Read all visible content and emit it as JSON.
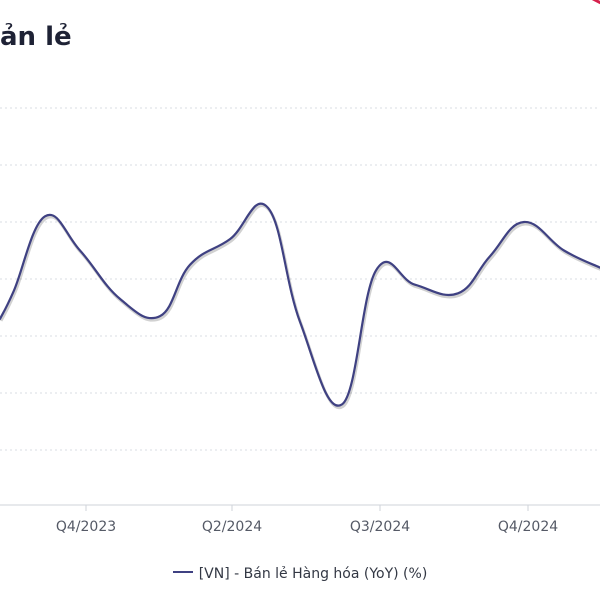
{
  "chart_data": {
    "type": "line",
    "title": "ản lẻ",
    "x_ticks": [
      "Q4/2023",
      "Q2/2024",
      "Q3/2024",
      "Q4/2024"
    ],
    "series": [
      {
        "name": "[VN] - Bán lẻ Hàng hóa (YoY) (%)",
        "color": "#3f4182",
        "values": [
          8.6,
          9.6,
          12.2,
          11.0,
          9.3,
          8.7,
          10.5,
          11.4,
          12.5,
          8.5,
          5.6,
          10.3,
          9.8,
          9.5,
          10.8,
          12.0,
          11.0,
          10.4
        ]
      },
      {
        "color": "#d6204c",
        "values": [
          20.4,
          19.7
        ]
      }
    ],
    "grid": true,
    "legend_position": "bottom"
  }
}
